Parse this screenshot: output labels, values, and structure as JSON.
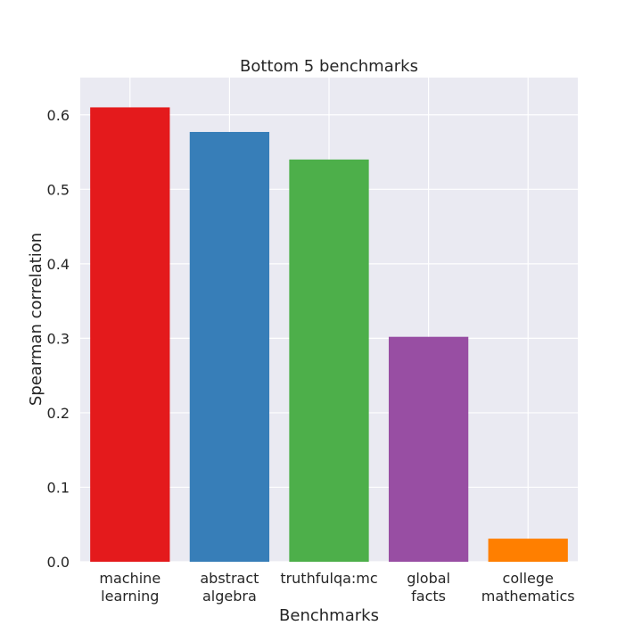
{
  "chart_data": {
    "type": "bar",
    "title": "Bottom 5 benchmarks",
    "xlabel": "Benchmarks",
    "ylabel": "Spearman correlation",
    "categories": [
      [
        "machine",
        "learning"
      ],
      [
        "abstract",
        "algebra"
      ],
      [
        "truthfulqa:mc"
      ],
      [
        "global",
        "facts"
      ],
      [
        "college",
        "mathematics"
      ]
    ],
    "values": [
      0.61,
      0.577,
      0.54,
      0.302,
      0.031
    ],
    "colors": [
      "#e41a1c",
      "#377eb8",
      "#4daf4a",
      "#984ea3",
      "#ff7f00"
    ],
    "ylim": [
      0,
      0.65
    ],
    "yticks": [
      "0.0",
      "0.1",
      "0.2",
      "0.3",
      "0.4",
      "0.5",
      "0.6"
    ],
    "grid": true,
    "background": "#eaeaf2"
  }
}
